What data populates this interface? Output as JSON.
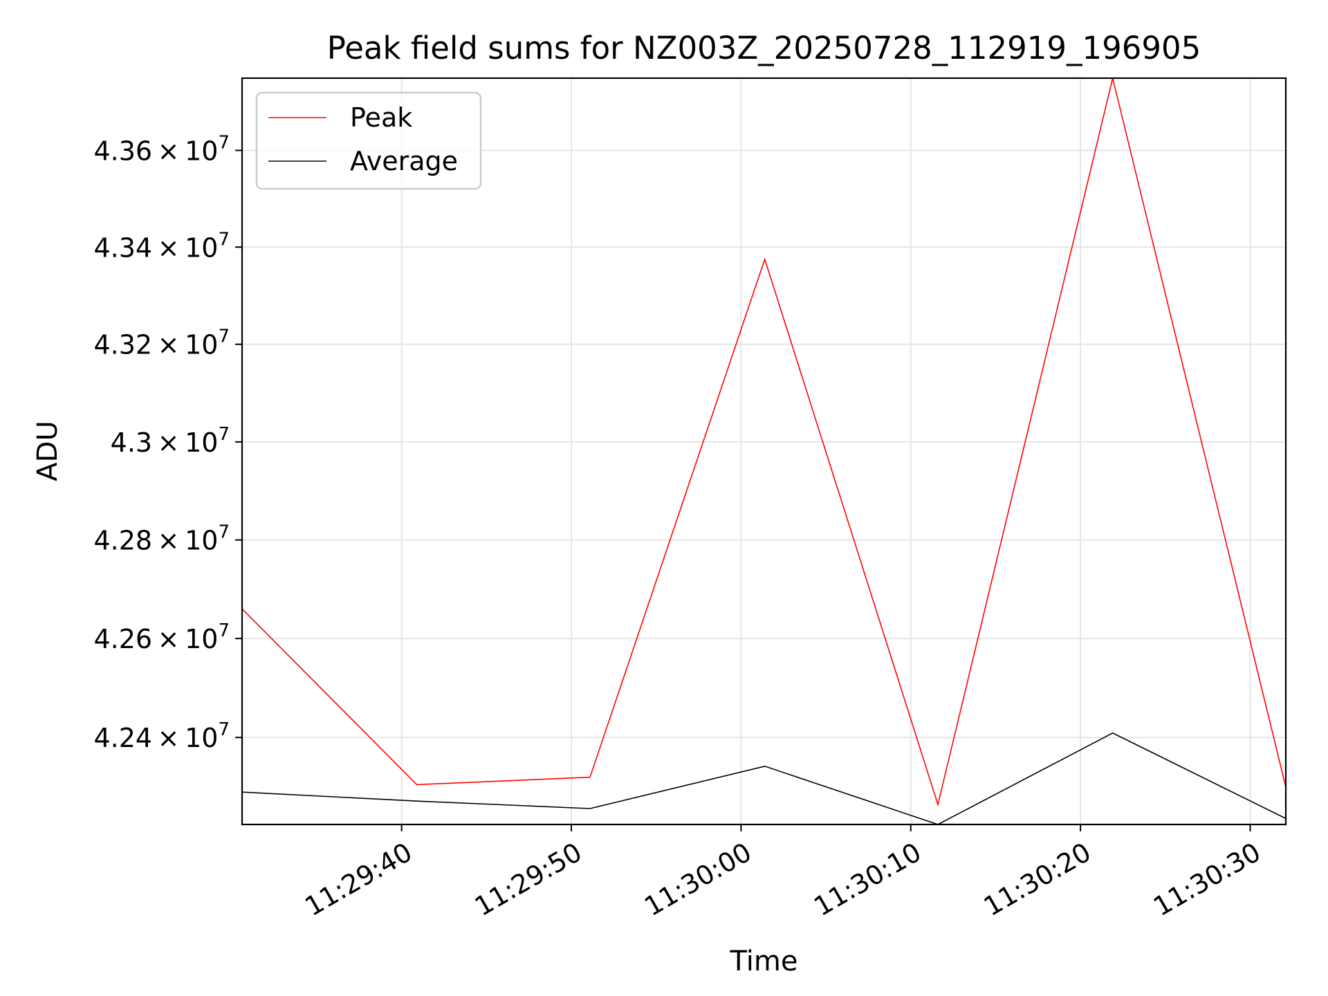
{
  "chart_data": {
    "type": "line",
    "title": "Peak field sums for NZ003Z_20250728_112919_196905",
    "xlabel": "Time",
    "ylabel": "ADU",
    "x_tick_labels": [
      "11:29:40",
      "11:29:50",
      "11:30:00",
      "11:30:10",
      "11:30:20",
      "11:30:30"
    ],
    "y_tick_labels": [
      {
        "mantissa": "4.24",
        "exponent": "7"
      },
      {
        "mantissa": "4.26",
        "exponent": "7"
      },
      {
        "mantissa": "4.28",
        "exponent": "7"
      },
      {
        "mantissa": "4.3",
        "exponent": "7"
      },
      {
        "mantissa": "4.32",
        "exponent": "7"
      },
      {
        "mantissa": "4.34",
        "exponent": "7"
      },
      {
        "mantissa": "4.36",
        "exponent": "7"
      }
    ],
    "y_ticks": [
      42400000,
      42600000,
      42800000,
      43000000,
      43200000,
      43400000,
      43600000
    ],
    "x_ticks": [
      "11:29:40",
      "11:29:50",
      "11:30:00",
      "11:30:10",
      "11:30:20",
      "11:30:30"
    ],
    "x_range": [
      "11:29:30.6",
      "11:30:32.1"
    ],
    "ylim": [
      42225000,
      43750000
    ],
    "y_scale": "log",
    "grid": true,
    "legend_position": "upper-left",
    "series": [
      {
        "name": "Peak",
        "color": "#ff0000",
        "x": [
          "11:29:30.6",
          "11:29:40.9",
          "11:29:51.1",
          "11:30:01.4",
          "11:30:11.6",
          "11:30:21.9",
          "11:30:32.1"
        ],
        "y": [
          42660000,
          42305000,
          42320000,
          43375000,
          42265000,
          43750000,
          42300000
        ]
      },
      {
        "name": "Average",
        "color": "#000000",
        "x": [
          "11:29:30.6",
          "11:29:40.9",
          "11:29:51.1",
          "11:30:01.4",
          "11:30:11.6",
          "11:30:21.9",
          "11:30:32.1"
        ],
        "y": [
          42290000,
          42272000,
          42257000,
          42342000,
          42225000,
          42409000,
          42237000
        ]
      }
    ]
  }
}
